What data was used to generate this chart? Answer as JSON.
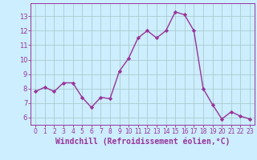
{
  "x": [
    0,
    1,
    2,
    3,
    4,
    5,
    6,
    7,
    8,
    9,
    10,
    11,
    12,
    13,
    14,
    15,
    16,
    17,
    18,
    19,
    20,
    21,
    22,
    23
  ],
  "y": [
    7.8,
    8.1,
    7.8,
    8.4,
    8.4,
    7.4,
    6.7,
    7.4,
    7.3,
    9.2,
    10.1,
    11.5,
    12.0,
    11.5,
    12.0,
    13.3,
    13.1,
    12.0,
    8.0,
    6.9,
    5.9,
    6.4,
    6.1,
    5.9
  ],
  "line_color": "#993399",
  "marker": "D",
  "markersize": 2.2,
  "linewidth": 1.0,
  "bg_color": "#cceeff",
  "grid_color": "#aacccc",
  "xlabel": "Windchill (Refroidissement éolien,°C)",
  "xlabel_fontsize": 7,
  "xlabel_color": "#993399",
  "ylabel_ticks": [
    6,
    7,
    8,
    9,
    10,
    11,
    12,
    13
  ],
  "xtick_labels": [
    "0",
    "1",
    "2",
    "3",
    "4",
    "5",
    "6",
    "7",
    "8",
    "9",
    "10",
    "11",
    "12",
    "13",
    "14",
    "15",
    "16",
    "17",
    "18",
    "19",
    "20",
    "21",
    "22",
    "23"
  ],
  "ylim": [
    5.5,
    13.9
  ],
  "xlim": [
    -0.5,
    23.5
  ],
  "tick_color": "#993399",
  "ytick_fontsize": 6,
  "xtick_fontsize": 5.5
}
